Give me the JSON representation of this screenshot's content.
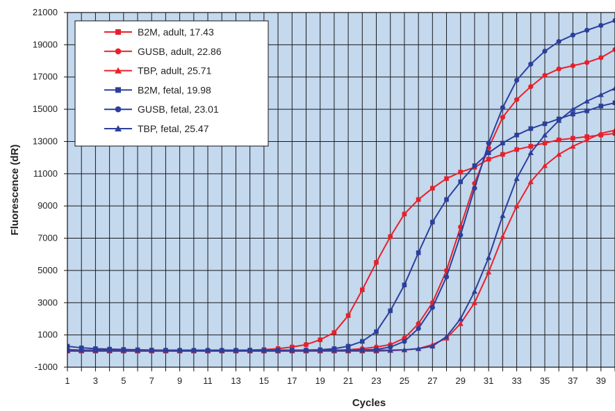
{
  "chart_data": {
    "type": "line",
    "title": "",
    "xlabel": "Cycles",
    "ylabel": "Fluorescence (dR)",
    "xlim": [
      1,
      40
    ],
    "ylim": [
      -1000,
      21000
    ],
    "x_ticks": [
      "1",
      "3",
      "5",
      "7",
      "9",
      "11",
      "13",
      "15",
      "17",
      "19",
      "21",
      "23",
      "25",
      "27",
      "29",
      "31",
      "33",
      "35",
      "37",
      "39"
    ],
    "y_ticks": [
      "-1000",
      "1000",
      "3000",
      "5000",
      "7000",
      "9000",
      "11000",
      "13000",
      "15000",
      "17000",
      "19000",
      "21000"
    ],
    "grid": true,
    "legend_position": "top-left",
    "plot_background": "#c4d8ee",
    "x": [
      1,
      2,
      3,
      4,
      5,
      6,
      7,
      8,
      9,
      10,
      11,
      12,
      13,
      14,
      15,
      16,
      17,
      18,
      19,
      20,
      21,
      22,
      23,
      24,
      25,
      26,
      27,
      28,
      29,
      30,
      31,
      32,
      33,
      34,
      35,
      36,
      37,
      38,
      39,
      40
    ],
    "series": [
      {
        "name": "B2M, adult, 17.43",
        "color": "#e8202a",
        "marker": "square",
        "values": [
          100,
          50,
          30,
          30,
          20,
          10,
          10,
          10,
          10,
          20,
          20,
          30,
          40,
          60,
          90,
          150,
          250,
          400,
          700,
          1150,
          2200,
          3800,
          5500,
          7100,
          8500,
          9400,
          10100,
          10700,
          11100,
          11400,
          11900,
          12200,
          12500,
          12700,
          12900,
          13100,
          13200,
          13300,
          13400,
          13500
        ]
      },
      {
        "name": "GUSB, adult, 22.86",
        "color": "#e8202a",
        "marker": "circle",
        "values": [
          0,
          0,
          0,
          0,
          0,
          0,
          0,
          0,
          0,
          0,
          0,
          0,
          0,
          0,
          0,
          0,
          0,
          0,
          20,
          40,
          80,
          150,
          250,
          400,
          800,
          1700,
          3000,
          5000,
          7700,
          10400,
          12600,
          14500,
          15600,
          16400,
          17100,
          17500,
          17700,
          17900,
          18200,
          18700
        ]
      },
      {
        "name": "TBP, adult, 25.71",
        "color": "#e8202a",
        "marker": "triangle",
        "values": [
          0,
          0,
          0,
          0,
          0,
          0,
          0,
          0,
          0,
          0,
          0,
          0,
          0,
          0,
          0,
          0,
          0,
          0,
          0,
          0,
          0,
          0,
          0,
          30,
          70,
          150,
          400,
          800,
          1700,
          3000,
          4900,
          7100,
          9000,
          10500,
          11500,
          12200,
          12700,
          13100,
          13500,
          13700
        ]
      },
      {
        "name": "B2M, fetal, 19.98",
        "color": "#2b3f9c",
        "marker": "square",
        "values": [
          300,
          200,
          150,
          120,
          100,
          80,
          60,
          50,
          40,
          40,
          40,
          40,
          40,
          40,
          40,
          40,
          50,
          60,
          80,
          150,
          300,
          600,
          1200,
          2500,
          4100,
          6100,
          8000,
          9400,
          10500,
          11500,
          12300,
          12900,
          13400,
          13800,
          14100,
          14400,
          14700,
          14900,
          15200,
          15400
        ]
      },
      {
        "name": "GUSB, fetal, 23.01",
        "color": "#2b3f9c",
        "marker": "circle",
        "values": [
          50,
          50,
          50,
          50,
          50,
          50,
          50,
          50,
          50,
          50,
          50,
          50,
          50,
          50,
          50,
          50,
          50,
          50,
          50,
          50,
          50,
          60,
          100,
          250,
          600,
          1400,
          2700,
          4600,
          7200,
          10100,
          12900,
          15100,
          16800,
          17800,
          18600,
          19200,
          19600,
          19900,
          20200,
          20500
        ]
      },
      {
        "name": "TBP, fetal, 25.47",
        "color": "#2b3f9c",
        "marker": "triangle",
        "values": [
          50,
          50,
          50,
          50,
          50,
          50,
          50,
          50,
          50,
          50,
          50,
          50,
          50,
          50,
          50,
          50,
          50,
          50,
          50,
          50,
          50,
          50,
          50,
          50,
          80,
          150,
          300,
          900,
          2000,
          3700,
          5800,
          8400,
          10700,
          12300,
          13400,
          14300,
          15000,
          15500,
          15900,
          16300
        ]
      }
    ]
  }
}
